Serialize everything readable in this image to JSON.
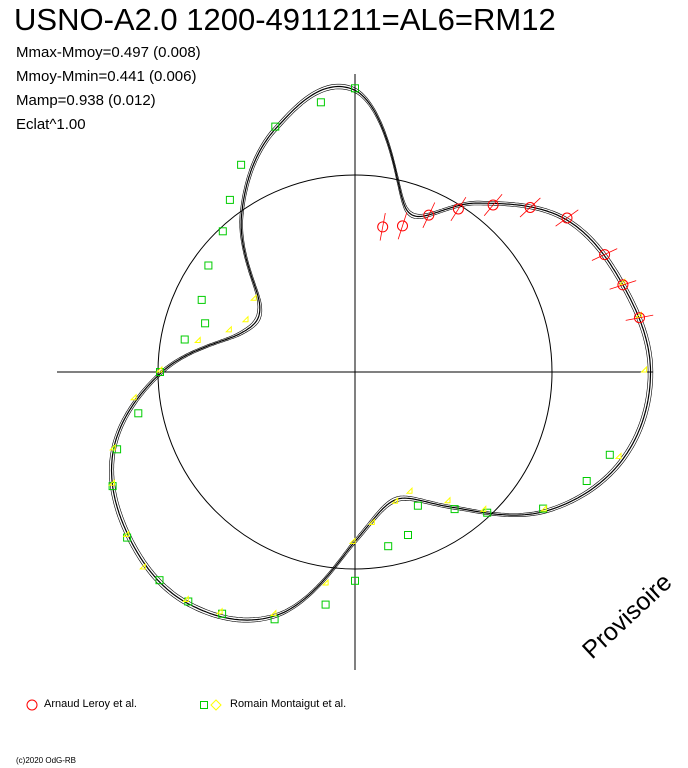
{
  "header": {
    "title": "USNO-A2.0 1200-4911211=AL6=RM12",
    "stats": [
      "Mmax-Mmoy=0.497 (0.008)",
      "Mmoy-Mmin=0.441 (0.006)",
      "Mamp=0.938 (0.012)",
      "Eclat^1.00"
    ]
  },
  "watermark": "Provisoire",
  "footer": {
    "copyright": "(c)2020 OdG-RB"
  },
  "legend": [
    {
      "label": "Arnaud Leroy et al.",
      "markers": [
        "circle"
      ],
      "colors": [
        "#ff0000"
      ]
    },
    {
      "label": "Romain Montaigut et al.",
      "markers": [
        "square",
        "diamond"
      ],
      "colors": [
        "#00cc00",
        "#ffff00"
      ]
    }
  ],
  "colors": {
    "red_series": "#ff0000",
    "green_series": "#00cc00",
    "yellow_series": "#ffff00",
    "axes": "#000000",
    "background": "#ffffff"
  },
  "chart_data": {
    "type": "scatter",
    "coordinate_system": "polar",
    "angle_variable": "phase",
    "reference_circle_radius": 1.0,
    "axes_range": [
      -1.5,
      1.5
    ],
    "grid": false,
    "model_curve": {
      "phase": [
        0.0,
        0.05,
        0.1,
        0.15,
        0.2,
        0.25,
        0.3,
        0.35,
        0.4,
        0.45,
        0.5,
        0.55,
        0.6,
        0.65,
        0.7,
        0.75,
        0.8,
        0.85,
        0.9,
        0.95
      ],
      "radius": [
        1.43,
        1.3,
        0.98,
        0.6,
        0.62,
        0.98,
        1.29,
        1.42,
        1.45,
        1.3,
        0.86,
        0.68,
        0.85,
        1.2,
        1.43,
        1.5,
        1.43,
        1.32,
        1.06,
        0.86
      ]
    },
    "series": [
      {
        "name": "Romain Montaigut et al.",
        "marker": "square",
        "color": "#00cc00",
        "phase": [
          0.0,
          0.02,
          0.05,
          0.08,
          0.1,
          0.12,
          0.15,
          0.18,
          0.2,
          0.22,
          0.25,
          0.28,
          0.3,
          0.32,
          0.35,
          0.38,
          0.4,
          0.42,
          0.45,
          0.48,
          0.5,
          0.53,
          0.55,
          0.57,
          0.6,
          0.62,
          0.65,
          0.68,
          0.7
        ],
        "radius": [
          1.44,
          1.38,
          1.31,
          1.2,
          1.08,
          0.98,
          0.92,
          0.86,
          0.8,
          0.88,
          0.99,
          1.12,
          1.27,
          1.36,
          1.43,
          1.45,
          1.44,
          1.4,
          1.32,
          1.19,
          1.06,
          0.9,
          0.87,
          0.75,
          0.86,
          0.98,
          1.18,
          1.3,
          1.36
        ]
      },
      {
        "name": "Romain Montaigut et al.",
        "marker": "diamond",
        "color": "#ffff00",
        "phase": [
          0.15,
          0.18,
          0.2,
          0.22,
          0.25,
          0.27,
          0.3,
          0.32,
          0.35,
          0.37,
          0.4,
          0.42,
          0.45,
          0.48,
          0.5,
          0.52,
          0.55,
          0.57,
          0.6,
          0.62,
          0.65,
          0.7,
          0.75,
          0.78,
          0.8
        ],
        "radius": [
          0.62,
          0.6,
          0.66,
          0.8,
          0.98,
          1.12,
          1.28,
          1.35,
          1.42,
          1.46,
          1.44,
          1.4,
          1.3,
          1.09,
          0.87,
          0.78,
          0.7,
          0.68,
          0.82,
          0.97,
          1.2,
          1.42,
          1.48,
          1.48,
          1.44
        ]
      },
      {
        "name": "Arnaud Leroy et al.",
        "marker": "circle",
        "color": "#ff0000",
        "phase": [
          0.78,
          0.8,
          0.82,
          0.85,
          0.87,
          0.89,
          0.91,
          0.93,
          0.95,
          0.97
        ],
        "radius": [
          1.47,
          1.43,
          1.4,
          1.33,
          1.22,
          1.1,
          0.98,
          0.88,
          0.78,
          0.75
        ]
      }
    ]
  }
}
